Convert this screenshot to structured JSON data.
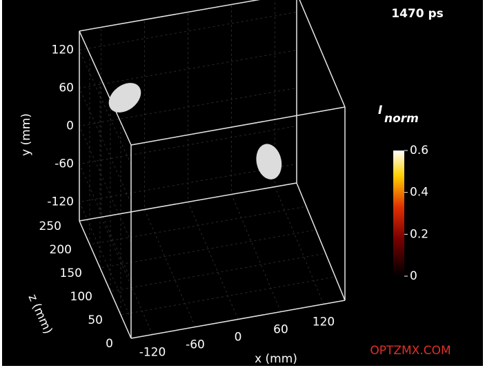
{
  "chart_data": {
    "type": "volume3d",
    "title": "1470 ps",
    "colorbar_label": "I",
    "colorbar_label_sub": "norm",
    "xlabel": "x (mm)",
    "ylabel": "y (mm)",
    "zlabel": "z (mm)",
    "xlim": [
      -150,
      150
    ],
    "ylim": [
      -150,
      150
    ],
    "zlim": [
      0,
      250
    ],
    "xticks": [
      -120,
      -60,
      0,
      60,
      120
    ],
    "yticks": [
      -120,
      -60,
      0,
      60,
      120
    ],
    "zticks": [
      0,
      50,
      100,
      150,
      200,
      250
    ],
    "series": [
      {
        "color": "#dcdcdc",
        "x": [
          -90,
          60
        ],
        "y": [
          40,
          40
        ],
        "z": [
          240,
          60
        ]
      }
    ],
    "clim": [
      0,
      0.6
    ],
    "cticks": [
      0,
      0.2,
      0.4,
      0.6
    ],
    "watermark": "OPTZMX.COM"
  }
}
